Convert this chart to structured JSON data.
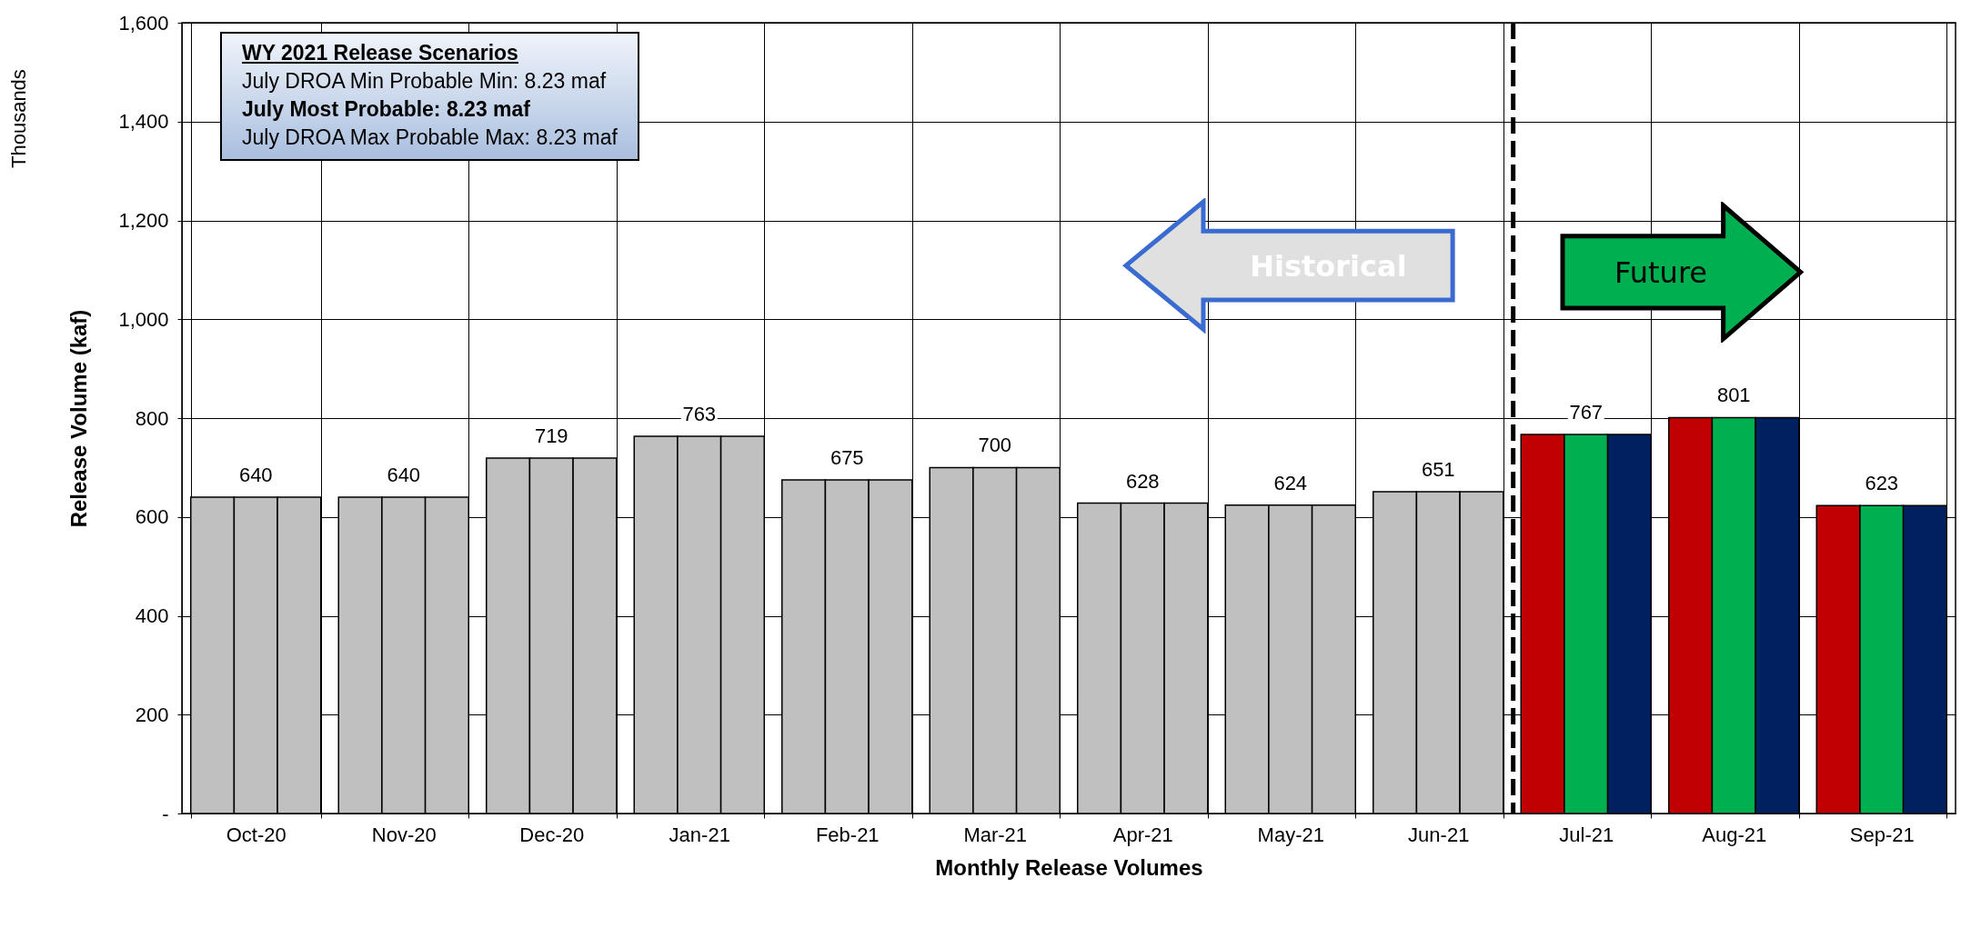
{
  "chart_data": {
    "type": "bar",
    "xlabel": "Monthly Release Volumes",
    "ylabel": "Release Volume (kaf)",
    "categories": [
      "Oct-20",
      "Nov-20",
      "Dec-20",
      "Jan-21",
      "Feb-21",
      "Mar-21",
      "Apr-21",
      "May-21",
      "Jun-21",
      "Jul-21",
      "Aug-21",
      "Sep-21"
    ],
    "series": [
      {
        "colors": [
          "#c0c0c0",
          "#c0c0c0",
          "#c0c0c0",
          "#c0c0c0",
          "#c0c0c0",
          "#c0c0c0",
          "#c0c0c0",
          "#c0c0c0",
          "#c0c0c0",
          "#c00000",
          "#c00000",
          "#c00000"
        ],
        "values": [
          640,
          640,
          719,
          763,
          675,
          700,
          628,
          624,
          651,
          767,
          801,
          623
        ]
      },
      {
        "colors": [
          "#c0c0c0",
          "#c0c0c0",
          "#c0c0c0",
          "#c0c0c0",
          "#c0c0c0",
          "#c0c0c0",
          "#c0c0c0",
          "#c0c0c0",
          "#c0c0c0",
          "#00b050",
          "#00b050",
          "#00b050"
        ],
        "values": [
          640,
          640,
          719,
          763,
          675,
          700,
          628,
          624,
          651,
          767,
          801,
          623
        ],
        "value_labels": [
          "640",
          "640",
          "719",
          "763",
          "675",
          "700",
          "628",
          "624",
          "651",
          "767",
          "801",
          "623"
        ]
      },
      {
        "colors": [
          "#c0c0c0",
          "#c0c0c0",
          "#c0c0c0",
          "#c0c0c0",
          "#c0c0c0",
          "#c0c0c0",
          "#c0c0c0",
          "#c0c0c0",
          "#c0c0c0",
          "#002060",
          "#002060",
          "#002060"
        ],
        "values": [
          640,
          640,
          719,
          763,
          675,
          700,
          628,
          624,
          651,
          767,
          801,
          623
        ]
      }
    ],
    "ylim": [
      0,
      1600
    ],
    "yticks": [
      {
        "value": 0,
        "label": "-"
      },
      200,
      400,
      600,
      800,
      {
        "value": 1000,
        "label": "1,000"
      },
      {
        "value": 1200,
        "label": "1,200"
      },
      {
        "value": 1400,
        "label": "1,400"
      },
      {
        "value": 1600,
        "label": "1,600"
      }
    ],
    "grid": true,
    "ref_lines": [
      {
        "axis": "x",
        "value": "Jul-21",
        "line_style": "dashed",
        "color": "#000000"
      }
    ],
    "annotations": [
      "Thousands",
      "WY 2021 Release Scenarios",
      "July DROA Min Probable Min: 8.23 maf",
      "July Most Probable: 8.23 maf",
      "July DROA Max Probable Max: 8.23 maf",
      "Historical",
      "Future"
    ]
  }
}
